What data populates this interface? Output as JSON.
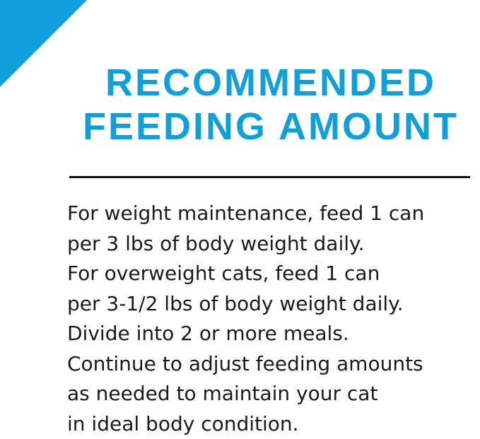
{
  "brand_color": "#0fa0dc",
  "title": {
    "line1": "RECOMMENDED",
    "line2": "FEEDING AMOUNT"
  },
  "body_lines": [
    "For weight maintenance, feed 1 can",
    "per 3 lbs of body weight daily.",
    "For overweight cats, feed 1 can",
    "per 3-1/2 lbs of body weight daily.",
    "Divide into 2 or more meals.",
    "Continue to adjust feeding amounts",
    "as needed to maintain your cat",
    "in ideal body condition."
  ]
}
